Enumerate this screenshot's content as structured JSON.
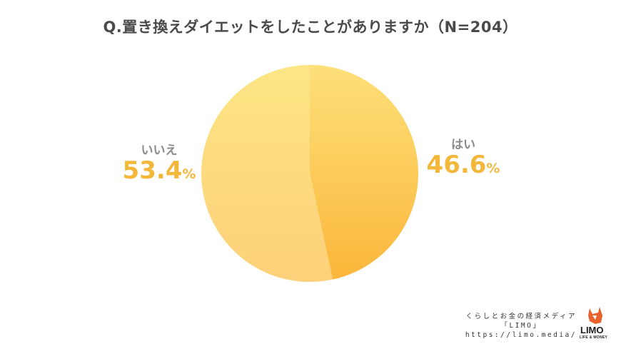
{
  "title": "Q.置き換えダイエットをしたことがありますか（N=204）",
  "chart_data": {
    "type": "pie",
    "categories": [
      "はい",
      "いいえ"
    ],
    "values": [
      46.6,
      53.4
    ],
    "unit": "%",
    "start": "top",
    "direction": "clockwise",
    "colors": {
      "yes": [
        "#fde07a",
        "#fbba3a"
      ],
      "no": [
        "#fde58a",
        "#fdd27a"
      ],
      "label_value": "#f3b73a",
      "label_name": "#8a8a8a"
    }
  },
  "labels": {
    "yes": {
      "name": "はい",
      "value": "46.6",
      "pct": "%"
    },
    "no": {
      "name": "いいえ",
      "value": "53.4",
      "pct": "%"
    }
  },
  "footer": {
    "line1": "くらしとお金の経済メディア",
    "line2": "「LIMO」",
    "line3": "https://limo.media/",
    "logo": "LIMO",
    "logo_sub": "LIFE & MONEY",
    "logo_icon": "fox-icon"
  }
}
